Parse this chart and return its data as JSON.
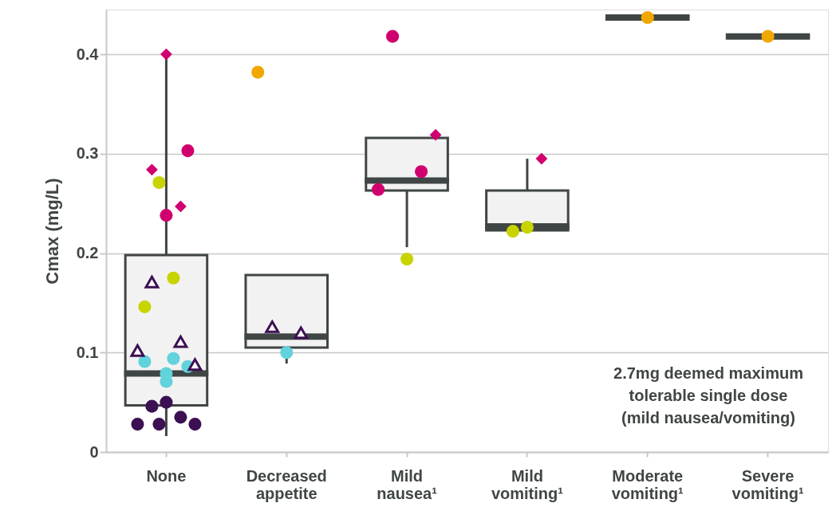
{
  "chart_data": {
    "type": "box",
    "categories": [
      "None",
      "Decreased appetite",
      "Mild nausea¹",
      "Mild vomiting¹",
      "Moderate vomiting¹",
      "Severe vomiting¹"
    ],
    "ylabel": "Cmax (mg/L)",
    "ylim": [
      0,
      0.445
    ],
    "yticks": [
      0,
      0.1,
      0.2,
      0.3,
      0.4
    ],
    "grid": "y",
    "color": "#404545",
    "boxes": [
      {
        "low": 0.016,
        "q1": 0.047,
        "median": 0.079,
        "q3": 0.198,
        "high": 0.4
      },
      {
        "low": 0.089,
        "q1": 0.105,
        "median": 0.116,
        "q3": 0.178,
        "high": 0.178
      },
      {
        "low": 0.206,
        "q1": 0.263,
        "median": 0.273,
        "q3": 0.316,
        "high": 0.316
      },
      {
        "low": 0.223,
        "q1": 0.223,
        "median": 0.227,
        "q3": 0.263,
        "high": 0.295
      },
      {
        "low": 0.437,
        "q1": 0.437,
        "median": 0.437,
        "q3": 0.437,
        "high": 0.437
      },
      {
        "low": 0.418,
        "q1": 0.418,
        "median": 0.418,
        "q3": 0.418,
        "high": 0.418
      }
    ],
    "series": [
      {
        "type": "scatter",
        "color": "#3c1053",
        "marker": "circle",
        "x": [
          "None",
          "None",
          "None",
          "None",
          "None",
          "None"
        ],
        "values": [
          0.05,
          0.046,
          0.035,
          0.028,
          0.028,
          0.028
        ]
      },
      {
        "type": "scatter",
        "color": "#62d2dc",
        "marker": "circle",
        "x": [
          "None",
          "None",
          "None",
          "None",
          "None",
          "Decreased appetite"
        ],
        "values": [
          0.094,
          0.091,
          0.086,
          0.079,
          0.071,
          0.1
        ]
      },
      {
        "type": "scatter",
        "color": "#3c1053",
        "marker": "triangle",
        "x": [
          "None",
          "None",
          "None",
          "None",
          "Decreased appetite",
          "Decreased appetite"
        ],
        "values": [
          0.171,
          0.111,
          0.102,
          0.088,
          0.126,
          0.12
        ]
      },
      {
        "type": "scatter",
        "color": "#c8d400",
        "marker": "circle",
        "x": [
          "None",
          "None",
          "None",
          "Mild nausea¹",
          "Mild vomiting¹",
          "Mild vomiting¹"
        ],
        "values": [
          0.271,
          0.175,
          0.146,
          0.194,
          0.226,
          0.222
        ]
      },
      {
        "type": "scatter",
        "color": "#d0006f",
        "marker": "circle",
        "x": [
          "None",
          "None",
          "Mild nausea¹",
          "Mild nausea¹",
          "Mild nausea¹"
        ],
        "values": [
          0.303,
          0.238,
          0.418,
          0.282,
          0.264
        ]
      },
      {
        "type": "scatter",
        "color": "#d0006f",
        "marker": "diamond",
        "x": [
          "None",
          "None",
          "None",
          "Mild nausea¹",
          "Mild vomiting¹"
        ],
        "values": [
          0.4,
          0.284,
          0.247,
          0.319,
          0.295
        ]
      },
      {
        "type": "scatter",
        "color": "#f0a800",
        "marker": "circle",
        "x": [
          "Decreased appetite",
          "Moderate vomiting¹",
          "Severe vomiting¹"
        ],
        "values": [
          0.382,
          0.437,
          0.418
        ]
      }
    ],
    "annotations": [
      "2.7mg deemed maximum\ntolerable single dose\n(mild nausea/vomiting)"
    ]
  }
}
